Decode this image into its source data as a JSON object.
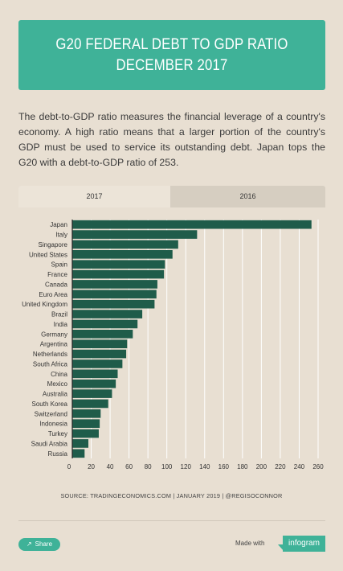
{
  "header": {
    "title_line1": "G20 FEDERAL DEBT TO GDP RATIO",
    "title_line2": "DECEMBER 2017"
  },
  "description": "The debt-to-GDP ratio measures the financial leverage of a country's economy. A high ratio means that a larger portion of the country's GDP must be used to service its outstanding debt. Japan tops the G20 with a debt-to-GDP ratio of 253.",
  "tabs": [
    {
      "label": "2017",
      "active": true
    },
    {
      "label": "2016",
      "active": false
    }
  ],
  "colors": {
    "accent": "#3fb298",
    "bar": "#1f5c4a",
    "background": "#e8dfd2"
  },
  "chart_data": {
    "type": "bar",
    "orientation": "horizontal",
    "categories": [
      "Japan",
      "Italy",
      "Singapore",
      "United States",
      "Spain",
      "France",
      "Canada",
      "Euro Area",
      "United Kingdom",
      "Brazil",
      "India",
      "Germany",
      "Argentina",
      "Netherlands",
      "South Africa",
      "China",
      "Mexico",
      "Australia",
      "South Korea",
      "Switzerland",
      "Indonesia",
      "Turkey",
      "Saudi Arabia",
      "Russia"
    ],
    "values": [
      253,
      132,
      112,
      106,
      98,
      97,
      90,
      89,
      87,
      74,
      69,
      64,
      58,
      57,
      53,
      48,
      46,
      42,
      38,
      30,
      29,
      28,
      17,
      13
    ],
    "xlim": [
      0,
      260
    ],
    "xticks": [
      0,
      20,
      40,
      60,
      80,
      100,
      120,
      140,
      160,
      180,
      200,
      220,
      240,
      260
    ],
    "grid": true,
    "legend": "none",
    "title": "",
    "xlabel": "",
    "ylabel": ""
  },
  "source": "SOURCE: TRADINGECONOMICS.COM | JANUARY 2019 | @REGISOCONNOR",
  "footer": {
    "share_label": "Share",
    "made_with": "Made with",
    "brand": "infogram"
  }
}
